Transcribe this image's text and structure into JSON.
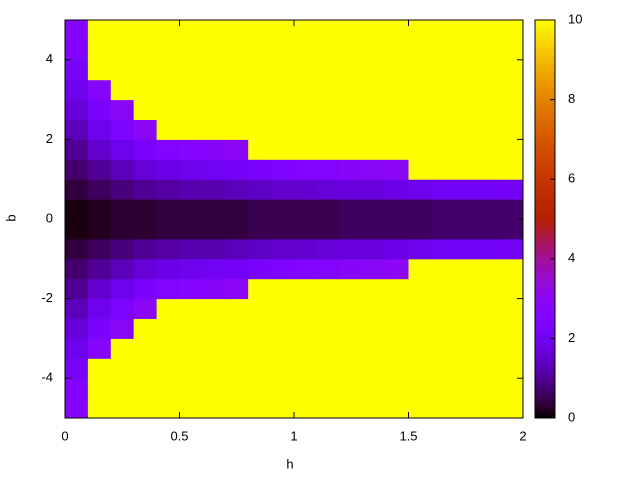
{
  "chart_data": {
    "type": "heatmap",
    "xlabel": "h",
    "ylabel": "b",
    "xlim": [
      0,
      2
    ],
    "ylim": [
      -5,
      5
    ],
    "xticks": [
      0,
      0.5,
      1,
      1.5,
      2
    ],
    "yticks": [
      -4,
      -2,
      0,
      2,
      4
    ],
    "zlim": [
      0,
      10
    ],
    "zticks": [
      0,
      2,
      4,
      6,
      8,
      10
    ],
    "colormap": "pm3d",
    "x": [
      0.05,
      0.15,
      0.25,
      0.35,
      0.45,
      0.55,
      0.65,
      0.75,
      0.85,
      0.95,
      1.05,
      1.15,
      1.25,
      1.35,
      1.45,
      1.55,
      1.65,
      1.75,
      1.85,
      1.95
    ],
    "y": [
      -4.75,
      -4.25,
      -3.75,
      -3.25,
      -2.75,
      -2.25,
      -1.75,
      -1.25,
      -0.75,
      -0.25,
      0.25,
      0.75,
      1.25,
      1.75,
      2.25,
      2.75,
      3.25,
      3.75,
      4.25,
      4.75
    ],
    "values": [
      [
        2.7,
        10,
        10,
        10,
        10,
        10,
        10,
        10,
        10,
        10,
        10,
        10,
        10,
        10,
        10,
        10,
        10,
        10,
        10,
        10
      ],
      [
        2.5,
        10,
        10,
        10,
        10,
        10,
        10,
        10,
        10,
        10,
        10,
        10,
        10,
        10,
        10,
        10,
        10,
        10,
        10,
        10
      ],
      [
        2.2,
        10,
        10,
        10,
        10,
        10,
        10,
        10,
        10,
        10,
        10,
        10,
        10,
        10,
        10,
        10,
        10,
        10,
        10,
        10
      ],
      [
        1.9,
        2.7,
        10,
        10,
        10,
        10,
        10,
        10,
        10,
        10,
        10,
        10,
        10,
        10,
        10,
        10,
        10,
        10,
        10,
        10
      ],
      [
        1.6,
        2.3,
        2.9,
        10,
        10,
        10,
        10,
        10,
        10,
        10,
        10,
        10,
        10,
        10,
        10,
        10,
        10,
        10,
        10,
        10
      ],
      [
        1.3,
        1.9,
        2.4,
        2.9,
        10,
        10,
        10,
        10,
        10,
        10,
        10,
        10,
        10,
        10,
        10,
        10,
        10,
        10,
        10,
        10
      ],
      [
        1.0,
        1.5,
        1.9,
        2.3,
        2.5,
        2.7,
        2.8,
        3.0,
        10,
        10,
        10,
        10,
        10,
        10,
        10,
        10,
        10,
        10,
        10,
        10
      ],
      [
        0.7,
        1.0,
        1.3,
        1.6,
        1.8,
        1.9,
        2.0,
        2.1,
        2.3,
        2.4,
        2.5,
        2.6,
        2.8,
        2.9,
        3.0,
        10,
        10,
        10,
        10,
        10
      ],
      [
        0.4,
        0.6,
        0.8,
        1.0,
        1.1,
        1.2,
        1.2,
        1.3,
        1.4,
        1.5,
        1.5,
        1.6,
        1.7,
        1.7,
        1.8,
        1.9,
        2.0,
        2.0,
        2.0,
        2.1
      ],
      [
        0.1,
        0.2,
        0.3,
        0.3,
        0.4,
        0.4,
        0.4,
        0.4,
        0.5,
        0.5,
        0.5,
        0.5,
        0.6,
        0.6,
        0.6,
        0.6,
        0.7,
        0.7,
        0.7,
        0.7
      ],
      [
        0.1,
        0.2,
        0.3,
        0.3,
        0.4,
        0.4,
        0.4,
        0.4,
        0.5,
        0.5,
        0.5,
        0.5,
        0.6,
        0.6,
        0.6,
        0.6,
        0.7,
        0.7,
        0.7,
        0.7
      ],
      [
        0.4,
        0.6,
        0.8,
        1.0,
        1.1,
        1.2,
        1.2,
        1.3,
        1.4,
        1.5,
        1.5,
        1.6,
        1.7,
        1.7,
        1.8,
        1.9,
        2.0,
        2.0,
        2.0,
        2.1
      ],
      [
        0.7,
        1.0,
        1.3,
        1.6,
        1.8,
        1.9,
        2.0,
        2.1,
        2.3,
        2.4,
        2.5,
        2.6,
        2.8,
        2.9,
        3.0,
        10,
        10,
        10,
        10,
        10
      ],
      [
        1.0,
        1.5,
        1.9,
        2.3,
        2.5,
        2.7,
        2.8,
        3.0,
        10,
        10,
        10,
        10,
        10,
        10,
        10,
        10,
        10,
        10,
        10,
        10
      ],
      [
        1.3,
        1.9,
        2.4,
        2.9,
        10,
        10,
        10,
        10,
        10,
        10,
        10,
        10,
        10,
        10,
        10,
        10,
        10,
        10,
        10,
        10
      ],
      [
        1.6,
        2.3,
        2.9,
        10,
        10,
        10,
        10,
        10,
        10,
        10,
        10,
        10,
        10,
        10,
        10,
        10,
        10,
        10,
        10,
        10
      ],
      [
        1.9,
        2.7,
        10,
        10,
        10,
        10,
        10,
        10,
        10,
        10,
        10,
        10,
        10,
        10,
        10,
        10,
        10,
        10,
        10,
        10
      ],
      [
        2.2,
        10,
        10,
        10,
        10,
        10,
        10,
        10,
        10,
        10,
        10,
        10,
        10,
        10,
        10,
        10,
        10,
        10,
        10,
        10
      ],
      [
        2.5,
        10,
        10,
        10,
        10,
        10,
        10,
        10,
        10,
        10,
        10,
        10,
        10,
        10,
        10,
        10,
        10,
        10,
        10,
        10
      ],
      [
        2.7,
        10,
        10,
        10,
        10,
        10,
        10,
        10,
        10,
        10,
        10,
        10,
        10,
        10,
        10,
        10,
        10,
        10,
        10,
        10
      ]
    ]
  }
}
